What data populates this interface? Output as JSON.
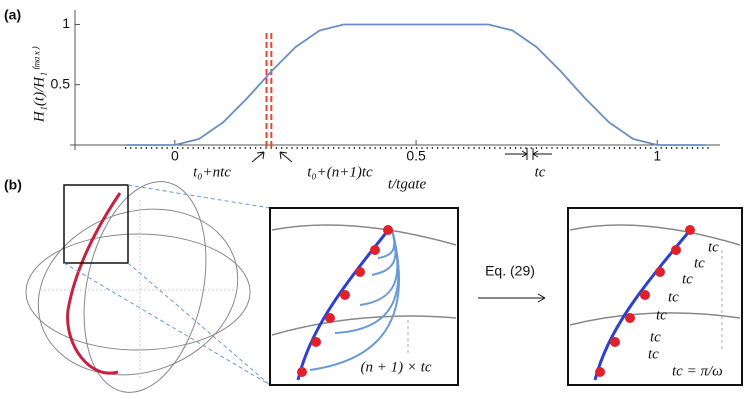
{
  "chart_data": {
    "type": "line",
    "panel_label": "(a)",
    "y_label": "H₁(t)/H₁⁽ᵐᵃˣ⁾",
    "x_label": "t/tgate",
    "x": [
      -0.1,
      -0.05,
      0,
      0.05,
      0.1,
      0.15,
      0.2,
      0.25,
      0.3,
      0.35,
      0.4,
      0.45,
      0.5,
      0.55,
      0.6,
      0.65,
      0.7,
      0.75,
      0.8,
      0.85,
      0.9,
      0.95,
      1,
      1.05,
      1.1
    ],
    "series": [
      {
        "color": "#6a8fc0",
        "values": [
          0,
          0,
          0,
          0.05,
          0.188,
          0.389,
          0.611,
          0.812,
          0.95,
          1,
          1,
          1,
          1,
          1,
          1,
          1,
          0.95,
          0.812,
          0.611,
          0.389,
          0.188,
          0.05,
          0,
          0,
          0
        ]
      }
    ],
    "xlim": [
      -0.207,
      1.13
    ],
    "ylim": [
      0,
      1.12
    ],
    "xticks": [
      0,
      0.5,
      1
    ],
    "yticks": [
      0.5,
      1
    ],
    "dashed_lines": [
      0.19,
      0.2
    ],
    "dashed_color": "#e8452c",
    "annotations": [
      "t₀+ntc",
      "t₀+(n+1)tc",
      "tc"
    ]
  },
  "panel_b": {
    "panel_label": "(b)",
    "arrow_label": "Eq. (29)",
    "inset1_label": "(n + 1) × tc",
    "inset2_labels": [
      "tc",
      "tc",
      "tc",
      "tc",
      "tc",
      "tc",
      "tc",
      "tc = π/ω"
    ]
  }
}
